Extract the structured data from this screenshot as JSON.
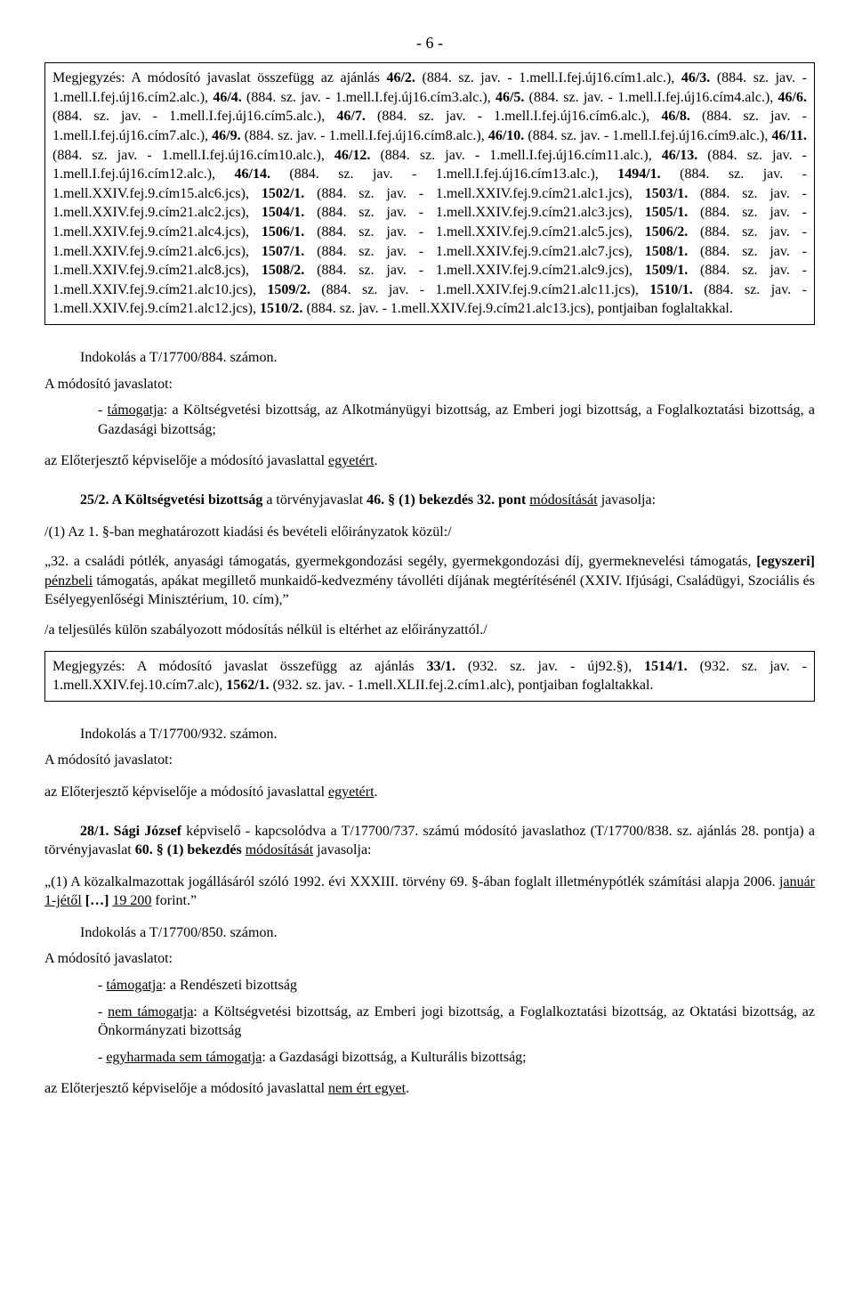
{
  "page_num": "- 6 -",
  "box1_text": "Megjegyzés: A módosító javaslat összefügg az ajánlás <b>46/2.</b> (884. sz. jav. - 1.mell.I.fej.új16.cím1.alc.), <b>46/3.</b> (884. sz. jav. - 1.mell.I.fej.új16.cím2.alc.), <b>46/4.</b> (884. sz. jav. - 1.mell.I.fej.új16.cím3.alc.), <b>46/5.</b> (884. sz. jav. - 1.mell.I.fej.új16.cím4.alc.), <b>46/6.</b> (884. sz. jav. - 1.mell.I.fej.új16.cím5.alc.), <b>46/7.</b> (884. sz. jav. - 1.mell.I.fej.új16.cím6.alc.), <b>46/8.</b> (884. sz. jav. - 1.mell.I.fej.új16.cím7.alc.), <b>46/9.</b> (884. sz. jav. - 1.mell.I.fej.új16.cím8.alc.), <b>46/10.</b> (884. sz. jav. - 1.mell.I.fej.új16.cím9.alc.), <b>46/11.</b> (884. sz. jav. - 1.mell.I.fej.új16.cím10.alc.), <b>46/12.</b> (884. sz. jav. - 1.mell.I.fej.új16.cím11.alc.), <b>46/13.</b> (884. sz. jav. - 1.mell.I.fej.új16.cím12.alc.), <b>46/14.</b> (884. sz. jav. - 1.mell.I.fej.új16.cím13.alc.), <b>1494/1.</b> (884. sz. jav. - 1.mell.XXIV.fej.9.cím15.alc6.jcs), <b>1502/1.</b> (884. sz. jav. - 1.mell.XXIV.fej.9.cím21.alc1.jcs), <b>1503/1.</b> (884. sz. jav. - 1.mell.XXIV.fej.9.cím21.alc2.jcs), <b>1504/1.</b> (884. sz. jav. - 1.mell.XXIV.fej.9.cím21.alc3.jcs), <b>1505/1.</b> (884. sz. jav. - 1.mell.XXIV.fej.9.cím21.alc4.jcs), <b>1506/1.</b> (884. sz. jav. - 1.mell.XXIV.fej.9.cím21.alc5.jcs), <b>1506/2.</b> (884. sz. jav. - 1.mell.XXIV.fej.9.cím21.alc6.jcs), <b>1507/1.</b> (884. sz. jav. - 1.mell.XXIV.fej.9.cím21.alc7.jcs), <b>1508/1.</b> (884. sz. jav. - 1.mell.XXIV.fej.9.cím21.alc8.jcs), <b>1508/2.</b> (884. sz. jav. - 1.mell.XXIV.fej.9.cím21.alc9.jcs), <b>1509/1.</b> (884. sz. jav. - 1.mell.XXIV.fej.9.cím21.alc10.jcs), <b>1509/2.</b> (884. sz. jav. - 1.mell.XXIV.fej.9.cím21.alc11.jcs), <b>1510/1.</b> (884. sz. jav. - 1.mell.XXIV.fej.9.cím21.alc12.jcs), <b>1510/2.</b> (884. sz. jav. - 1.mell.XXIV.fej.9.cím21.alc13.jcs), pontjaiban foglaltakkal.",
  "sec1_line1": "Indokolás a T/17700/884. számon.",
  "sec1_line2": "A módosító javaslatot:",
  "sec1_line3": "- <u>támogatja</u>: a Költségvetési bizottság, az Alkotmányügyi bizottság, az Emberi jogi bizottság, a Foglalkoztatási bizottság, a Gazdasági bizottság;",
  "sec1_line4": "az Előterjesztő képviselője a módosító javaslattal <u>egyetért</u>.",
  "sec2_head": "<b>25/2. A Költségvetési bizottság</b>  a törvényjavaslat <b>46. § (1) bekezdés 32. pont</b> <u>módosítását</u> javasolja:",
  "sec2_p1": "/(1) Az 1. §-ban meghatározott kiadási és bevételi előirányzatok közül:/",
  "sec2_p2": "„32. a családi pótlék, anyasági támogatás, gyermekgondozási segély, gyermekgondozási díj, gyermeknevelési támogatás, <b>[egyszeri]</b> <u>pénzbeli</u> támogatás, apákat megillető munkaidő-kedvezmény távolléti díjának megtérítésénél (XXIV. Ifjúsági, Családügyi, Szociális és Esélyegyenlőségi Minisztérium, 10. cím),”",
  "sec2_p3": "/a teljesülés külön szabályozott módosítás nélkül is eltérhet az előirányzattól./",
  "box2_text": "Megjegyzés: A módosító javaslat összefügg az ajánlás <b>33/1.</b> (932. sz. jav. - új92.§), <b>1514/1.</b> (932. sz. jav. - 1.mell.XXIV.fej.10.cím7.alc), <b>1562/1.</b> (932. sz. jav. - 1.mell.XLII.fej.2.cím1.alc), pontjaiban foglaltakkal.",
  "sec3_line1": "Indokolás a T/17700/932. számon.",
  "sec3_line2": "A módosító javaslatot:",
  "sec3_line4": "az Előterjesztő képviselője a módosító javaslattal <u>egyetért</u>.",
  "sec4_head": "<b>28/1. Sági József</b> képviselő - kapcsolódva a T/17700/737. számú módosító javaslathoz (T/17700/838. sz. ajánlás 28. pontja)  a törvényjavaslat <b>60. § (1) bekezdés</b> <u>módosítását</u> javasolja:",
  "sec4_p1": "„(1) A közalkalmazottak jogállásáról szóló 1992. évi XXXIII. törvény 69. §-ában foglalt illetménypótlék számítási alapja 2006. <u>január 1-jétől</u> <b>[…]</b> <u>19&nbsp;200</u> forint.”",
  "sec5_line1": "Indokolás a T/17700/850. számon.",
  "sec5_line2": "A módosító javaslatot:",
  "sec5_line3": "- <u>támogatja</u>: a Rendészeti bizottság",
  "sec5_line4": "- <u>nem támogatja</u>: a Költségvetési bizottság, az Emberi jogi bizottság, a Foglalkoztatási bizottság, az Oktatási bizottság, az Önkormányzati bizottság",
  "sec5_line5": "- <u>egyharmada sem támogatja</u>: a Gazdasági bizottság, a Kulturális bizottság;",
  "sec5_line6": "az Előterjesztő képviselője a módosító javaslattal <u>nem ért egyet</u>."
}
